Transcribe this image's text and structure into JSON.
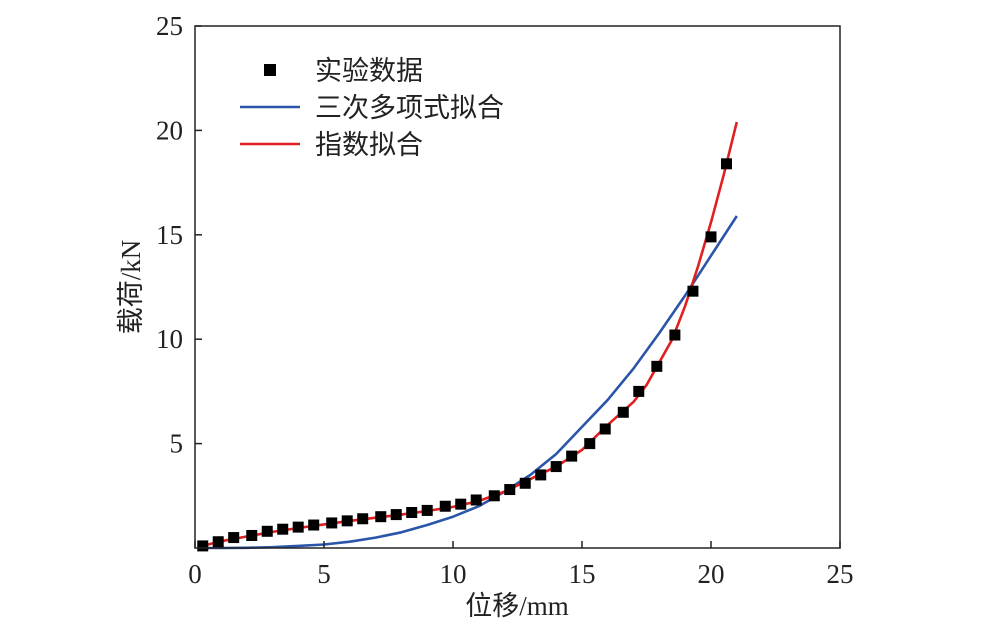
{
  "chart_data": {
    "type": "scatter",
    "title": "",
    "xlabel": "位移/mm",
    "ylabel": "载荷/kN",
    "xlim": [
      0,
      25
    ],
    "ylim": [
      0,
      25
    ],
    "xticks": [
      "0",
      "5",
      "10",
      "15",
      "20",
      "25"
    ],
    "yticks": [
      "5",
      "10",
      "15",
      "20",
      "25"
    ],
    "grid": false,
    "legend_position": "top-left",
    "series": [
      {
        "name": "实验数据",
        "kind": "scatter",
        "marker": "square",
        "color": "#000000",
        "x": [
          0.3,
          0.9,
          1.5,
          2.2,
          2.8,
          3.4,
          4.0,
          4.6,
          5.3,
          5.9,
          6.5,
          7.2,
          7.8,
          8.4,
          9.0,
          9.7,
          10.3,
          10.9,
          11.6,
          12.2,
          12.8,
          13.4,
          14.0,
          14.6,
          15.3,
          15.9,
          16.6,
          17.2,
          17.9,
          18.6,
          19.3,
          20.0,
          20.6
        ],
        "y": [
          0.1,
          0.3,
          0.5,
          0.6,
          0.8,
          0.9,
          1.0,
          1.1,
          1.2,
          1.3,
          1.4,
          1.5,
          1.6,
          1.7,
          1.8,
          2.0,
          2.1,
          2.3,
          2.5,
          2.8,
          3.1,
          3.5,
          3.9,
          4.4,
          5.0,
          5.7,
          6.5,
          7.5,
          8.7,
          10.2,
          12.3,
          14.9,
          18.4
        ]
      },
      {
        "name": "三次多项式拟合",
        "kind": "line",
        "color": "#2a55a8",
        "x": [
          0.3,
          1,
          2,
          3,
          4,
          5,
          6,
          7,
          8,
          9,
          10,
          11,
          12,
          13,
          14,
          15,
          16,
          17,
          18,
          19,
          20,
          21
        ],
        "y": [
          0.0,
          0.0,
          0.01,
          0.04,
          0.1,
          0.17,
          0.3,
          0.5,
          0.75,
          1.1,
          1.5,
          2.0,
          2.7,
          3.5,
          4.5,
          5.8,
          7.1,
          8.6,
          10.3,
          12.1,
          14.0,
          15.9
        ]
      },
      {
        "name": "指数拟合",
        "kind": "line",
        "color": "#e02020",
        "x": [
          0.3,
          1,
          2,
          3,
          4,
          5,
          6,
          7,
          8,
          9,
          10,
          11,
          12,
          13,
          14,
          15,
          16,
          17,
          17.5,
          18,
          18.5,
          19,
          19.5,
          20,
          20.5,
          21
        ],
        "y": [
          0.1,
          0.32,
          0.55,
          0.77,
          0.96,
          1.13,
          1.3,
          1.45,
          1.6,
          1.77,
          1.97,
          2.25,
          2.7,
          3.3,
          3.9,
          4.7,
          5.9,
          7.0,
          7.8,
          8.9,
          10.0,
          11.6,
          13.5,
          15.6,
          17.9,
          20.4
        ]
      }
    ]
  }
}
